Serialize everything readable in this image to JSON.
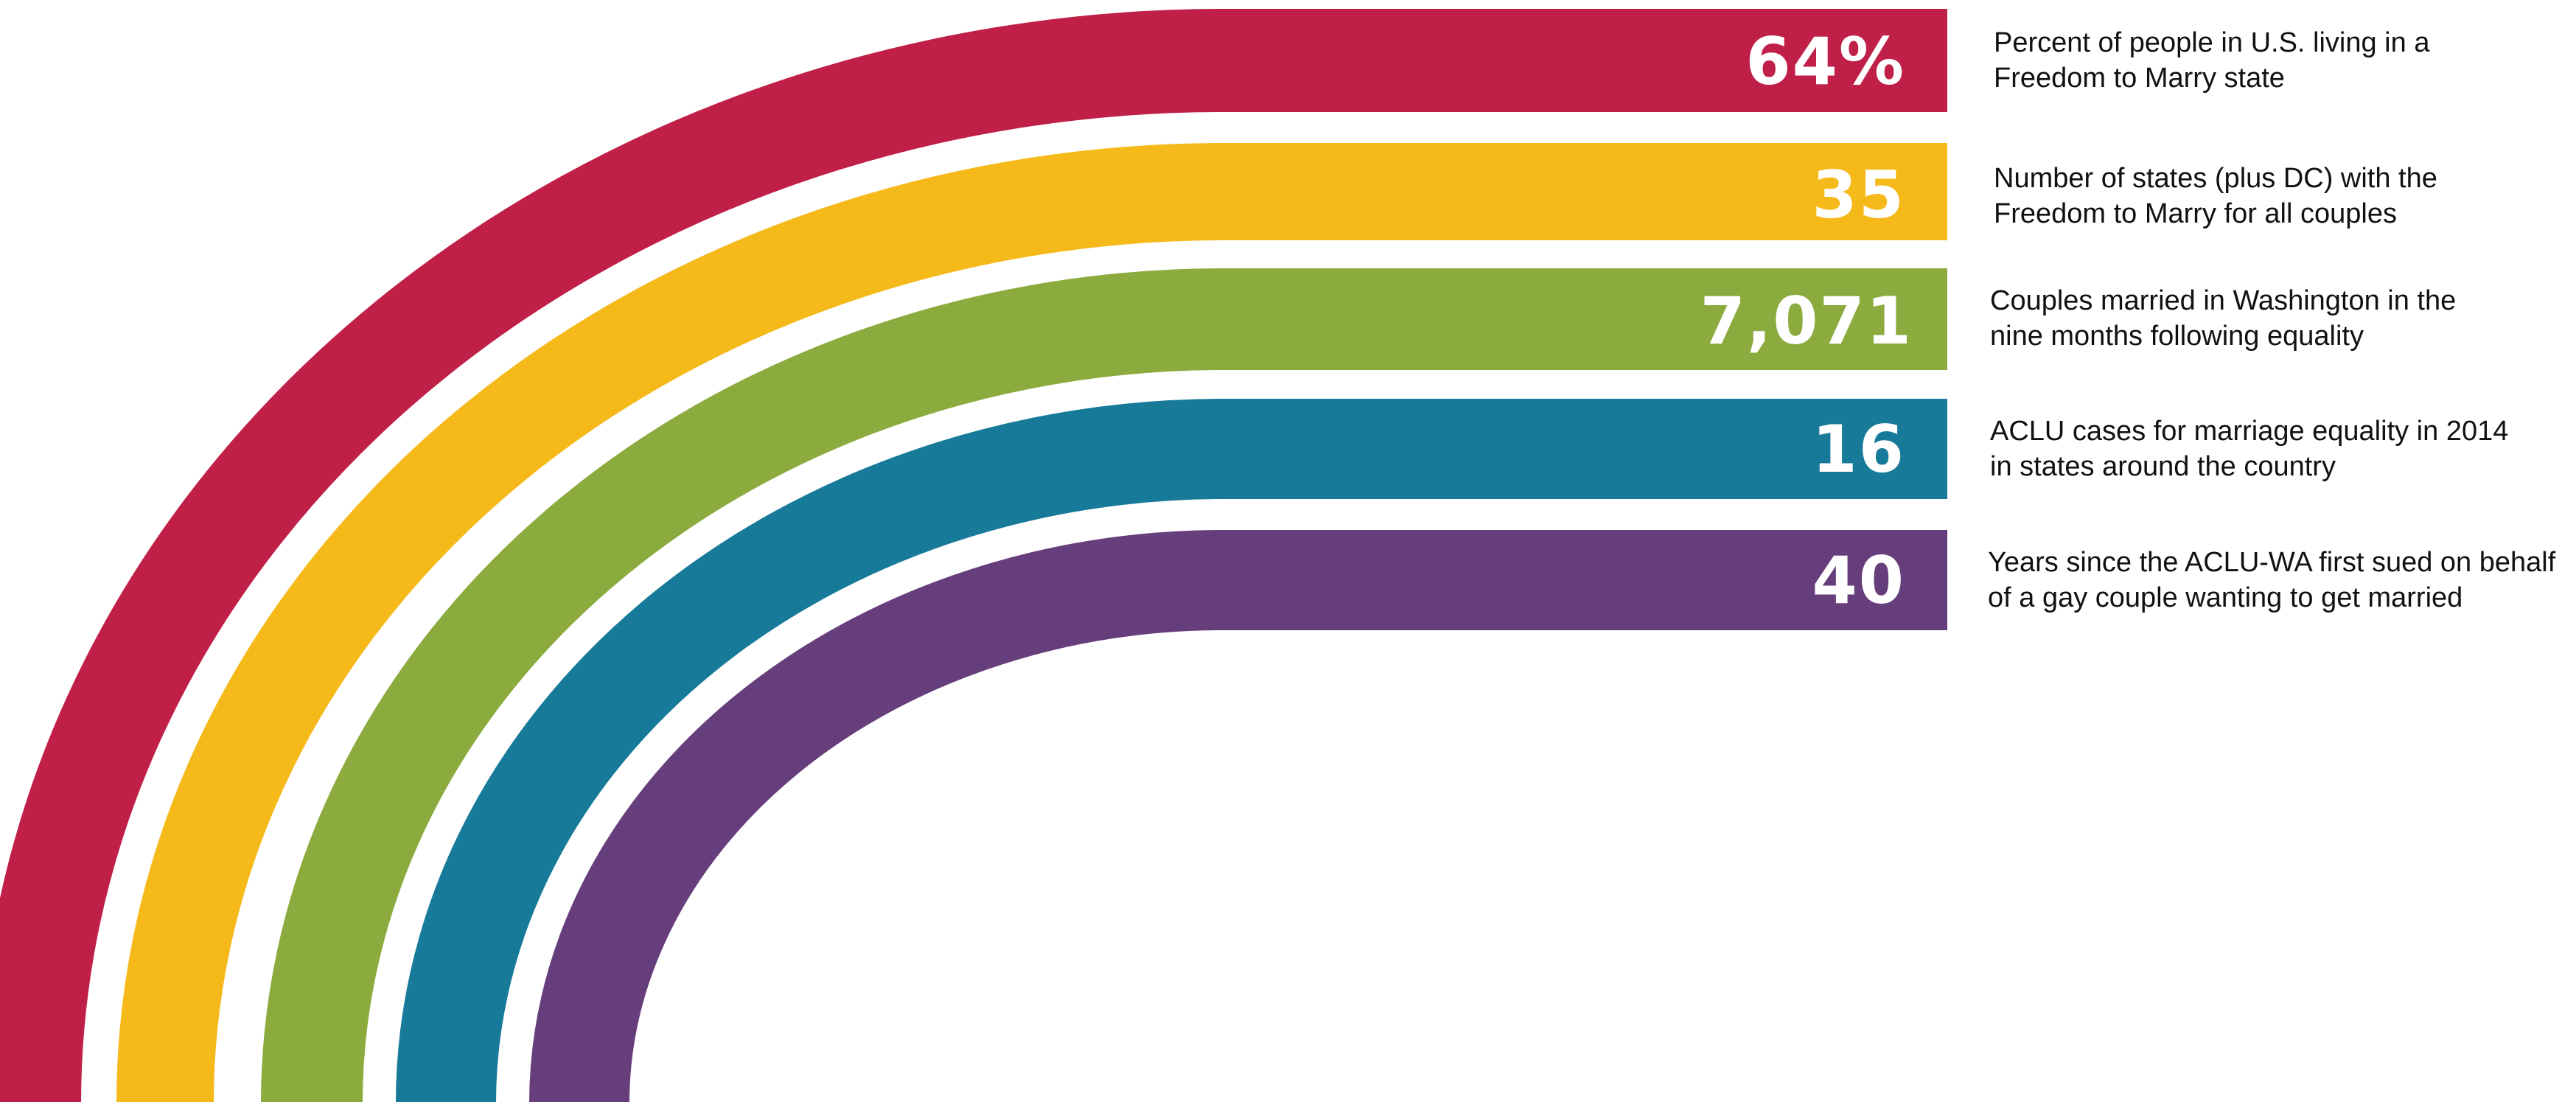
{
  "stats": [
    {
      "value": "64%",
      "description_line1": "Percent of people in U.S. living in a",
      "description_line2": "Freedom to Marry state",
      "color": "#C01F47"
    },
    {
      "value": "35",
      "description_line1": "Number of states (plus DC) with the",
      "description_line2": "Freedom to Marry for all couples",
      "color": "#F5B91A"
    },
    {
      "value": "7,071",
      "description_line1": "Couples married in Washington in the",
      "description_line2": "nine months following equality",
      "color": "#8CAB3F"
    },
    {
      "value": "16",
      "description_line1": "ACLU cases for marriage equality in 2014",
      "description_line2": "in states around the country",
      "color": "#177A99"
    },
    {
      "value": "40",
      "description_line1": "Years since the ACLU-WA first sued on behalf",
      "description_line2": "of a gay couple wanting to get married",
      "color": "#673E7C"
    }
  ]
}
